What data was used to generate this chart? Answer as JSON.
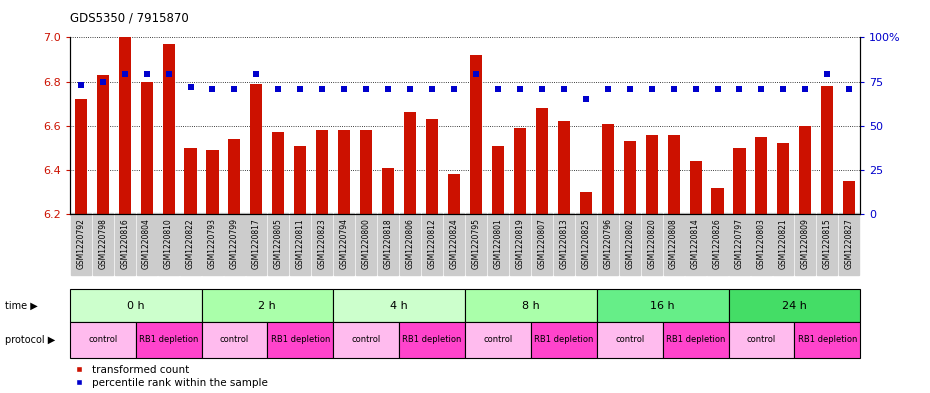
{
  "title": "GDS5350 / 7915870",
  "samples": [
    "GSM1220792",
    "GSM1220798",
    "GSM1220816",
    "GSM1220804",
    "GSM1220810",
    "GSM1220822",
    "GSM1220793",
    "GSM1220799",
    "GSM1220817",
    "GSM1220805",
    "GSM1220811",
    "GSM1220823",
    "GSM1220794",
    "GSM1220800",
    "GSM1220818",
    "GSM1220806",
    "GSM1220812",
    "GSM1220824",
    "GSM1220795",
    "GSM1220801",
    "GSM1220819",
    "GSM1220807",
    "GSM1220813",
    "GSM1220825",
    "GSM1220796",
    "GSM1220802",
    "GSM1220820",
    "GSM1220808",
    "GSM1220814",
    "GSM1220826",
    "GSM1220797",
    "GSM1220803",
    "GSM1220821",
    "GSM1220809",
    "GSM1220815",
    "GSM1220827"
  ],
  "bar_values": [
    6.72,
    6.83,
    7.0,
    6.8,
    6.97,
    6.5,
    6.49,
    6.54,
    6.79,
    6.57,
    6.51,
    6.58,
    6.58,
    6.58,
    6.41,
    6.66,
    6.63,
    6.38,
    6.92,
    6.51,
    6.59,
    6.68,
    6.62,
    6.3,
    6.61,
    6.53,
    6.56,
    6.56,
    6.44,
    6.32,
    6.5,
    6.55,
    6.52,
    6.6,
    6.78,
    6.35
  ],
  "percentile_values": [
    73,
    75,
    79,
    79,
    79,
    72,
    71,
    71,
    79,
    71,
    71,
    71,
    71,
    71,
    71,
    71,
    71,
    71,
    79,
    71,
    71,
    71,
    71,
    65,
    71,
    71,
    71,
    71,
    71,
    71,
    71,
    71,
    71,
    71,
    79,
    71
  ],
  "ylim_left": [
    6.2,
    7.0
  ],
  "ylim_right": [
    0,
    100
  ],
  "yticks_left": [
    6.2,
    6.4,
    6.6,
    6.8,
    7.0
  ],
  "yticks_right": [
    0,
    25,
    50,
    75,
    100
  ],
  "ytick_labels_right": [
    "0",
    "25",
    "50",
    "75",
    "100%"
  ],
  "bar_color": "#CC1100",
  "dot_color": "#0000CC",
  "time_groups": [
    {
      "label": "0 h",
      "start": 0,
      "end": 6,
      "color": "#CCFFCC"
    },
    {
      "label": "2 h",
      "start": 6,
      "end": 12,
      "color": "#AAEEBB"
    },
    {
      "label": "4 h",
      "start": 12,
      "end": 18,
      "color": "#CCFFCC"
    },
    {
      "label": "8 h",
      "start": 18,
      "end": 24,
      "color": "#AAEEBB"
    },
    {
      "label": "16 h",
      "start": 24,
      "end": 30,
      "color": "#66DD88"
    },
    {
      "label": "24 h",
      "start": 30,
      "end": 36,
      "color": "#55CC77"
    }
  ],
  "protocol_groups": [
    {
      "label": "control",
      "start": 0,
      "end": 3,
      "color": "#FFBBEE"
    },
    {
      "label": "RB1 depletion",
      "start": 3,
      "end": 6,
      "color": "#FF44CC"
    },
    {
      "label": "control",
      "start": 6,
      "end": 9,
      "color": "#FFBBEE"
    },
    {
      "label": "RB1 depletion",
      "start": 9,
      "end": 12,
      "color": "#FF44CC"
    },
    {
      "label": "control",
      "start": 12,
      "end": 15,
      "color": "#FFBBEE"
    },
    {
      "label": "RB1 depletion",
      "start": 15,
      "end": 18,
      "color": "#FF44CC"
    },
    {
      "label": "control",
      "start": 18,
      "end": 21,
      "color": "#FFBBEE"
    },
    {
      "label": "RB1 depletion",
      "start": 21,
      "end": 24,
      "color": "#FF44CC"
    },
    {
      "label": "control",
      "start": 24,
      "end": 27,
      "color": "#FFBBEE"
    },
    {
      "label": "RB1 depletion",
      "start": 27,
      "end": 30,
      "color": "#FF44CC"
    },
    {
      "label": "control",
      "start": 30,
      "end": 33,
      "color": "#FFBBEE"
    },
    {
      "label": "RB1 depletion",
      "start": 33,
      "end": 36,
      "color": "#FF44CC"
    }
  ],
  "legend_bar_label": "transformed count",
  "legend_dot_label": "percentile rank within the sample",
  "background_color": "#FFFFFF",
  "tick_bg_color": "#CCCCCC"
}
